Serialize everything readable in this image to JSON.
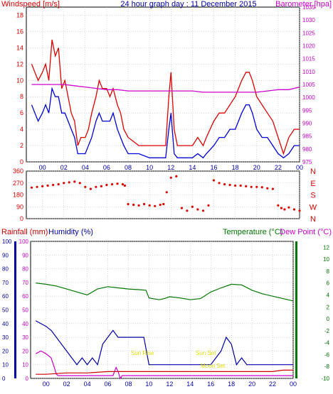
{
  "colors": {
    "wind": "#e00000",
    "barometer": "#cc00cc",
    "gust": "#e00000",
    "avg": "#0000dd",
    "humidity": "#cc00cc",
    "temperature": "#007700",
    "dewpoint": "#0000aa",
    "rain": "#cc0000",
    "sun": "#dddd00",
    "grid": "#bbbbbb",
    "frame": "#000000"
  },
  "chart_data": [
    {
      "type": "line",
      "title": "24 hour graph day : 11 December 2015",
      "left_label": "Windspeed [m/s]",
      "right_label": "Barometer [hpa]",
      "x_ticks": [
        "00",
        "02",
        "04",
        "06",
        "08",
        "10",
        "12",
        "14",
        "16",
        "18",
        "20",
        "22",
        "00"
      ],
      "y_left_ticks": [
        "0",
        "2",
        "4",
        "6",
        "8",
        "10",
        "12",
        "14",
        "16",
        "18"
      ],
      "y_left_range": [
        0,
        19
      ],
      "y_right_ticks": [
        "975",
        "980",
        "985",
        "990",
        "995",
        "1000",
        "1005",
        "1010",
        "1015",
        "1020",
        "1025",
        "1030",
        "1035"
      ],
      "y_right_range": [
        975,
        1035
      ],
      "series": [
        {
          "key": "gust",
          "x": [
            -1,
            -0.7,
            -0.4,
            0,
            0.3,
            0.6,
            0.9,
            1.2,
            1.5,
            1.8,
            2.1,
            2.4,
            2.7,
            3,
            3.3,
            3.6,
            4,
            4.3,
            4.6,
            5,
            5.3,
            5.6,
            6,
            6.3,
            6.6,
            7,
            7.3,
            7.6,
            8,
            9,
            10,
            11,
            11.5,
            11.8,
            12,
            12.3,
            12.6,
            13,
            14,
            14.5,
            15,
            15.3,
            16,
            16.5,
            17,
            17.5,
            18,
            18.3,
            18.6,
            19,
            19.3,
            19.6,
            20,
            20.5,
            21,
            21.5,
            22,
            22.5,
            23,
            23.5,
            24
          ],
          "y": [
            12,
            11,
            10,
            11,
            12,
            10,
            15,
            13,
            14,
            9,
            10,
            8,
            6,
            5,
            2,
            3,
            3,
            4,
            6,
            8,
            10,
            9,
            9,
            8,
            9,
            7,
            6,
            4,
            3,
            2,
            2,
            2,
            2,
            8,
            11,
            4,
            2,
            2,
            2,
            3,
            2,
            3,
            5,
            6,
            6,
            7,
            8,
            9,
            10,
            11,
            11,
            10,
            8,
            7,
            6,
            5,
            3,
            1,
            3,
            4,
            4
          ]
        },
        {
          "key": "avg",
          "x": [
            -1,
            -0.7,
            -0.4,
            0,
            0.3,
            0.6,
            0.9,
            1.2,
            1.5,
            1.8,
            2.1,
            2.4,
            2.7,
            3,
            3.3,
            3.6,
            4,
            4.3,
            4.6,
            5,
            5.3,
            5.6,
            6,
            6.3,
            6.6,
            7,
            7.3,
            7.6,
            8,
            9,
            10,
            11,
            11.5,
            11.8,
            12,
            12.3,
            12.6,
            13,
            14,
            14.5,
            15,
            15.3,
            16,
            16.5,
            17,
            17.5,
            18,
            18.3,
            18.6,
            19,
            19.3,
            19.6,
            20,
            20.5,
            21,
            21.5,
            22,
            22.5,
            23,
            23.5,
            24
          ],
          "y": [
            7,
            6,
            5,
            6,
            7,
            6,
            9,
            8,
            8,
            6,
            6,
            5,
            4,
            3,
            1,
            1,
            1,
            2,
            3,
            5,
            6,
            5,
            5,
            5,
            6,
            4,
            3,
            2,
            1,
            1,
            0.5,
            0.5,
            0.5,
            4,
            6,
            1,
            0.5,
            0.5,
            0.5,
            1,
            0.5,
            1,
            2,
            3,
            3,
            4,
            4,
            5,
            6,
            7,
            7,
            6,
            4,
            3,
            3,
            2,
            1,
            0.5,
            1,
            2,
            2
          ]
        },
        {
          "key": "barometer",
          "axis": "right",
          "x": [
            -1,
            0,
            1,
            2,
            3,
            4,
            5,
            6,
            7,
            8,
            9,
            10,
            11,
            12,
            13,
            14,
            15,
            16,
            17,
            18,
            19,
            20,
            21,
            22,
            23,
            24
          ],
          "y": [
            1005,
            1005,
            1005,
            1005,
            1004.5,
            1004,
            1003.5,
            1003,
            1003,
            1002.5,
            1002.5,
            1002.5,
            1002.5,
            1002.5,
            1002.5,
            1002.5,
            1002,
            1002,
            1002,
            1002,
            1002,
            1002,
            1002.5,
            1003,
            1003,
            1004
          ]
        }
      ]
    },
    {
      "type": "scatter",
      "y_left_ticks": [
        "0",
        "90",
        "180",
        "270",
        "360"
      ],
      "y_range": [
        0,
        360
      ],
      "y_right_labels": [
        "N",
        "W",
        "S",
        "E",
        "N"
      ],
      "series": [
        {
          "key": "direction",
          "x": [
            -1,
            -0.5,
            0,
            0.5,
            1,
            1.5,
            2,
            2.5,
            3,
            3.5,
            4,
            4.5,
            5,
            5.5,
            6,
            6.5,
            7,
            7.5,
            7.7,
            8,
            8.5,
            9,
            9.5,
            10,
            10.5,
            11,
            11.3,
            11.6,
            12,
            12.5,
            13,
            13.5,
            14,
            14.5,
            15,
            15.5,
            16,
            16.5,
            17,
            17.5,
            18,
            18.5,
            19,
            19.5,
            20,
            20.5,
            21,
            21.5,
            22,
            22.3,
            22.6,
            23,
            23.5,
            24
          ],
          "y": [
            235,
            240,
            245,
            250,
            255,
            260,
            270,
            275,
            280,
            270,
            240,
            225,
            240,
            245,
            255,
            260,
            265,
            260,
            250,
            110,
            105,
            100,
            110,
            100,
            95,
            105,
            110,
            200,
            310,
            320,
            80,
            60,
            90,
            70,
            60,
            100,
            290,
            270,
            260,
            255,
            250,
            250,
            245,
            240,
            240,
            238,
            230,
            225,
            100,
            80,
            70,
            85,
            70,
            60
          ]
        }
      ]
    },
    {
      "type": "line",
      "left_label": "Rainfall (mm)",
      "humidity_label": "Humidity (%)",
      "temperature_label": "Temperature (°C)",
      "dewpoint_label": "Dew Point (°C)",
      "x_ticks": [
        "00",
        "02",
        "04",
        "06",
        "08",
        "10",
        "12",
        "14",
        "16",
        "18",
        "20",
        "22",
        "00"
      ],
      "y_left_ticks": [
        "0",
        "10",
        "20",
        "30",
        "40",
        "50",
        "60",
        "70",
        "80",
        "90",
        "100"
      ],
      "y_range": [
        0,
        100
      ],
      "y_right_ticks": [
        "-10",
        "-8",
        "-6",
        "-4",
        "-2",
        "0",
        "2",
        "4",
        "6",
        "8",
        "10",
        "12"
      ],
      "y_right_range": [
        -10,
        13
      ],
      "sun_rise_label": "Sun Rise",
      "sun_set_label": "Sun Set",
      "moon_set_label": "Moon Set",
      "series": [
        {
          "key": "temperature",
          "axis": "right",
          "x": [
            -1,
            0,
            1,
            2,
            3,
            4,
            5,
            6,
            7,
            8,
            9,
            9.7,
            10,
            11,
            11.5,
            12,
            13,
            14,
            15,
            16,
            17,
            18,
            19,
            20,
            21,
            22,
            23,
            24
          ],
          "y": [
            6,
            5.8,
            5.5,
            5,
            4.5,
            4,
            5,
            5.4,
            5.2,
            5,
            4.9,
            4.8,
            3.5,
            3.2,
            3.4,
            3.7,
            3.5,
            3.2,
            3.4,
            4.5,
            5.2,
            5.8,
            5.7,
            4.8,
            4.2,
            3.8,
            3.4,
            3
          ]
        },
        {
          "key": "dewpoint",
          "axis": "left",
          "x": [
            -1,
            0,
            0.5,
            1,
            1.5,
            2,
            2.5,
            3,
            3.5,
            4,
            4.5,
            5,
            5.5,
            6,
            6.5,
            7,
            7.5,
            8,
            8.5,
            9,
            9.5,
            10,
            16,
            17,
            17.5,
            18,
            18.5,
            19,
            19.5,
            20,
            20.5,
            21,
            22,
            23,
            24
          ],
          "y": [
            42,
            38,
            35,
            30,
            25,
            20,
            15,
            10,
            15,
            10,
            15,
            10,
            25,
            30,
            35,
            30,
            30,
            30,
            30,
            30,
            30,
            10,
            10,
            20,
            30,
            25,
            10,
            15,
            10,
            10,
            10,
            10,
            10,
            10,
            10
          ]
        },
        {
          "key": "humidity",
          "axis": "left",
          "x": [
            -1,
            -0.5,
            0,
            0.5,
            0.8,
            1,
            1.2,
            6.5,
            6.8,
            7,
            7.2,
            7.4,
            24
          ],
          "y": [
            18,
            20,
            18,
            15,
            8,
            3,
            2,
            2,
            8,
            5,
            0,
            2,
            2
          ]
        },
        {
          "key": "rainfall",
          "axis": "left",
          "x": [
            -1,
            0,
            2,
            4,
            6,
            8,
            10,
            12,
            14,
            16,
            18,
            20,
            22,
            23,
            24
          ],
          "y": [
            3,
            3,
            4,
            4,
            5,
            5,
            5,
            5,
            5,
            5,
            5,
            5,
            5,
            6,
            6
          ]
        }
      ]
    }
  ]
}
